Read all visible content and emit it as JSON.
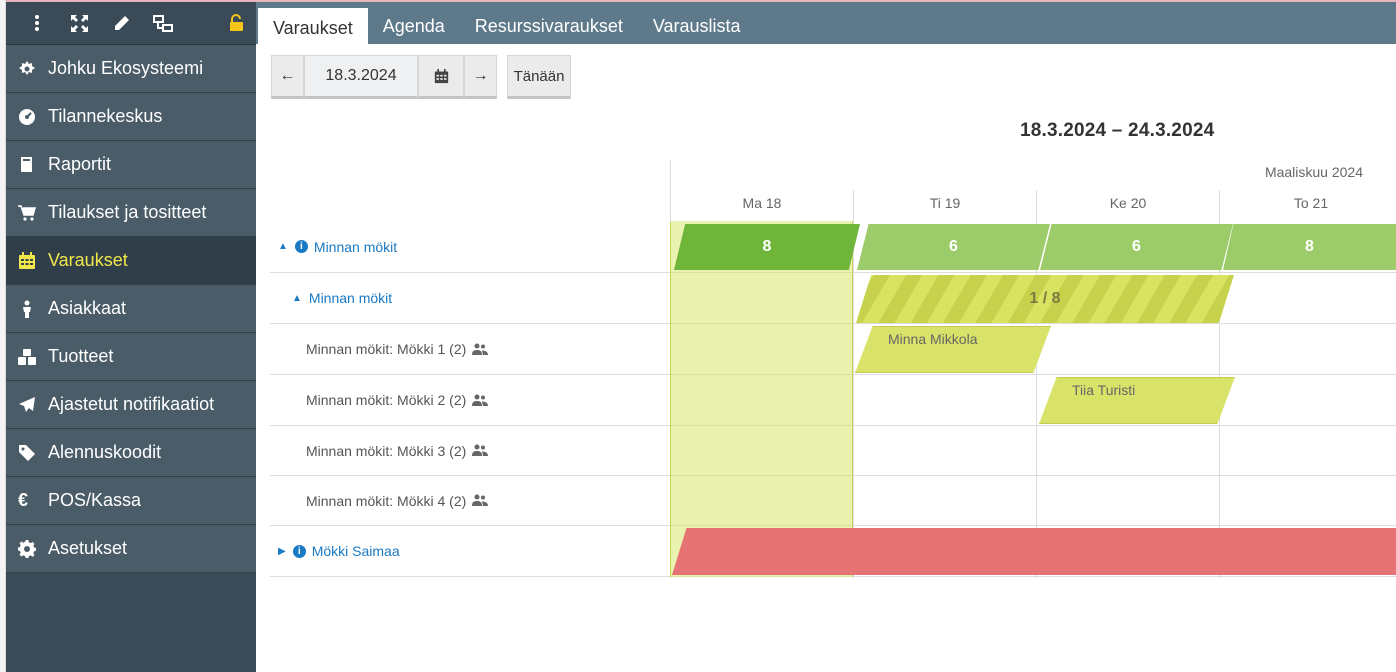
{
  "sidebar": {
    "toolbar": [
      "menu-icon",
      "expand-icon",
      "pencil-icon",
      "sitemap-icon",
      "lock-icon"
    ],
    "items": [
      {
        "label": "Johku Ekosysteemi",
        "icon": "cog-icon"
      },
      {
        "label": "Tilannekeskus",
        "icon": "dashboard-icon"
      },
      {
        "label": "Raportit",
        "icon": "book-icon"
      },
      {
        "label": "Tilaukset ja tositteet",
        "icon": "cart-icon"
      },
      {
        "label": "Varaukset",
        "icon": "calendar-icon",
        "active": true
      },
      {
        "label": "Asiakkaat",
        "icon": "person-icon"
      },
      {
        "label": "Tuotteet",
        "icon": "cubes-icon"
      },
      {
        "label": "Ajastetut notifikaatiot",
        "icon": "send-icon"
      },
      {
        "label": "Alennuskoodit",
        "icon": "tag-icon"
      },
      {
        "label": "POS/Kassa",
        "icon": "euro-icon"
      },
      {
        "label": "Asetukset",
        "icon": "gear-icon"
      }
    ]
  },
  "tabs": [
    {
      "label": "Varaukset",
      "active": true
    },
    {
      "label": "Agenda"
    },
    {
      "label": "Resurssivaraukset"
    },
    {
      "label": "Varauslista"
    }
  ],
  "controls": {
    "prev": "←",
    "date": "18.3.2024",
    "next": "→",
    "today": "Tänään"
  },
  "range_title": "18.3.2024 – 24.3.2024",
  "month_label": "Maaliskuu 2024",
  "days": [
    "Ma 18",
    "Ti 19",
    "Ke 20",
    "To 21"
  ],
  "rows": [
    {
      "label": "Minnan mökit",
      "type": "group",
      "expanded": true,
      "counts": [
        "8",
        "6",
        "6",
        "8"
      ]
    },
    {
      "label": "Minnan mökit",
      "type": "sub",
      "expanded": true,
      "availability": "1 / 8"
    },
    {
      "label": "Minnan mökit: Mökki 1 (2)",
      "type": "unit",
      "reservation": "Minna Mikkola"
    },
    {
      "label": "Minnan mökit: Mökki 2 (2)",
      "type": "unit",
      "reservation": "Tiia Turisti"
    },
    {
      "label": "Minnan mökit: Mökki 3 (2)",
      "type": "unit"
    },
    {
      "label": "Minnan mökit: Mökki 4 (2)",
      "type": "unit"
    },
    {
      "label": "Mökki Saimaa",
      "type": "group",
      "expanded": false
    }
  ],
  "colors": {
    "sidebar": "#3a4a56",
    "tabbar": "#5e7a8a",
    "count_today": "#6fb53a",
    "count": "#9ccc6a",
    "reservation": "#d9e36a",
    "unavailable": "#e57373",
    "link": "#1a7ac4",
    "active_menu": "#f0e84a"
  }
}
